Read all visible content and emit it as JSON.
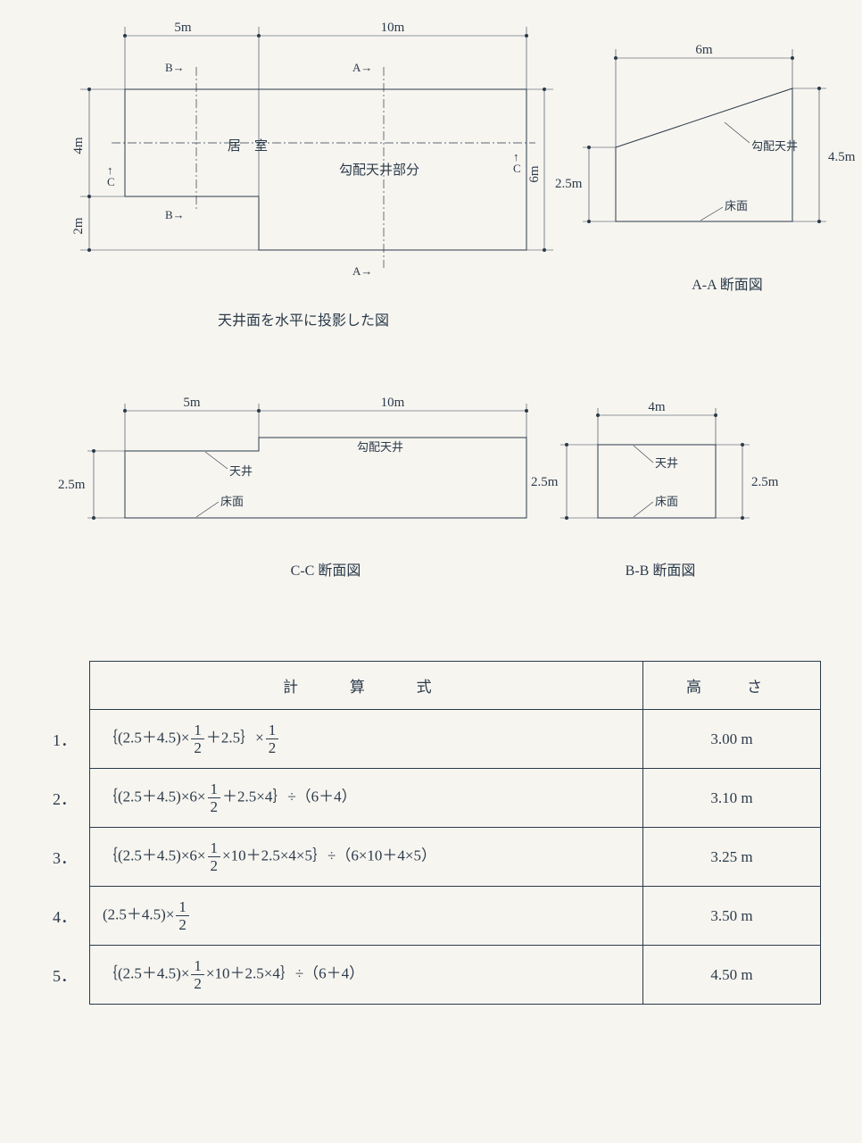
{
  "page": {
    "background": "#f7f5f0",
    "ink": "#2a3a4a"
  },
  "plan": {
    "dims_top": [
      "5m",
      "10m"
    ],
    "dims_left": [
      "4m",
      "2m"
    ],
    "dim_right": "6m",
    "labels": {
      "room": "居　室",
      "slope_ceiling": "勾配天井部分"
    },
    "markers": {
      "A": "A→",
      "B": "B→",
      "C": "C"
    },
    "section_arrows": [
      "B→",
      "B→",
      "A→",
      "A→"
    ],
    "caption": "天井面を水平に投影した図"
  },
  "secAA": {
    "dim_top": "6m",
    "dim_left": "2.5m",
    "dim_right": "4.5m",
    "labels": {
      "slope": "勾配天井",
      "floor": "床面"
    },
    "caption": "A‑A 断面図"
  },
  "secCC": {
    "dims_top": [
      "5m",
      "10m"
    ],
    "dim_left": "2.5m",
    "labels": {
      "ceiling": "天井",
      "slope": "勾配天井",
      "floor": "床面"
    },
    "caption": "C‑C 断面図"
  },
  "secBB": {
    "dim_top": "4m",
    "dim_left": "2.5m",
    "dim_right": "2.5m",
    "labels": {
      "ceiling": "天井",
      "floor": "床面"
    },
    "caption": "B‑B 断面図"
  },
  "table": {
    "headers": [
      "計　算　式",
      "高　さ"
    ],
    "rows": [
      {
        "num": "1．",
        "formula_html": "｛(2.5＋4.5)×<span class='frac'><span class='n'>1</span><span class='d'>2</span></span>＋2.5｝×<span class='frac'><span class='n'>1</span><span class='d'>2</span></span>",
        "height": "3.00 m"
      },
      {
        "num": "2．",
        "formula_html": "｛(2.5＋4.5)×6×<span class='frac'><span class='n'>1</span><span class='d'>2</span></span>＋2.5×4｝÷（6＋4）",
        "height": "3.10 m"
      },
      {
        "num": "3．",
        "formula_html": "｛(2.5＋4.5)×6×<span class='frac'><span class='n'>1</span><span class='d'>2</span></span>×10＋2.5×4×5｝÷（6×10＋4×5）",
        "height": "3.25 m"
      },
      {
        "num": "4．",
        "formula_html": "(2.5＋4.5)×<span class='frac'><span class='n'>1</span><span class='d'>2</span></span>",
        "height": "3.50 m"
      },
      {
        "num": "5．",
        "formula_html": "｛(2.5＋4.5)×<span class='frac'><span class='n'>1</span><span class='d'>2</span></span>×10＋2.5×4｝÷（6＋4）",
        "height": "4.50 m"
      }
    ]
  }
}
